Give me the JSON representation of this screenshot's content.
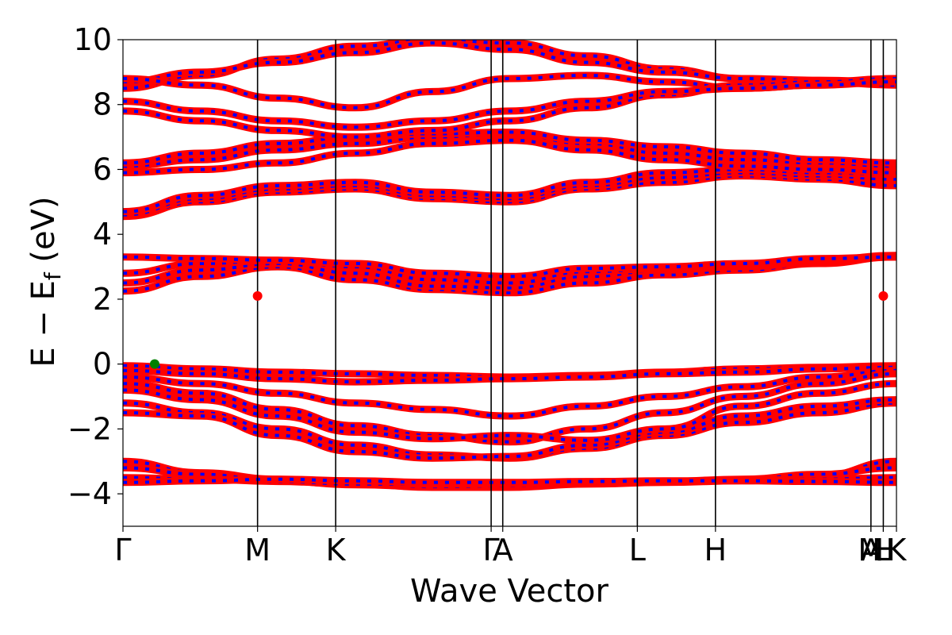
{
  "chart_data": {
    "type": "line",
    "title": "",
    "xlabel": "Wave Vector",
    "ylabel": "E − E",
    "ylabel_sub": "f",
    "ylabel_unit": " (eV)",
    "ylim": [
      -5,
      10
    ],
    "yticks": [
      -4,
      -2,
      0,
      2,
      4,
      6,
      8,
      10
    ],
    "ytick_labels": [
      "−4",
      "−2",
      "0",
      "2",
      "4",
      "6",
      "8",
      "10"
    ],
    "kpath": [
      {
        "label": "Γ",
        "x": 0.0
      },
      {
        "label": "M",
        "x": 0.174
      },
      {
        "label": "K",
        "x": 0.275
      },
      {
        "label": "Γ",
        "x": 0.476
      },
      {
        "label": "A",
        "x": 0.491
      },
      {
        "label": "L",
        "x": 0.665
      },
      {
        "label": "H",
        "x": 0.766
      },
      {
        "label": "A",
        "x": 0.967
      },
      {
        "label": "L",
        "x": 0.983
      },
      {
        "label": "M",
        "x": 0.967
      },
      {
        "label": "H",
        "x": 0.983
      },
      {
        "label": "K",
        "x": 1.0
      }
    ],
    "vlines": [
      0.174,
      0.275,
      0.476,
      0.491,
      0.665,
      0.766,
      0.967,
      0.983
    ],
    "grid": false,
    "legend": "none",
    "band_colors": [
      "#ff0000",
      "#0000ff"
    ],
    "vbm": {
      "x": 0.041,
      "y": 0.0,
      "color": "#008000"
    },
    "cbm": [
      {
        "x": 0.174,
        "y": 2.1,
        "color": "#ff0000"
      },
      {
        "x": 0.983,
        "y": 2.1,
        "color": "#ff0000"
      }
    ],
    "band_groups": [
      {
        "name": "valence-deep",
        "bands": [
          [
            -3.0,
            -3.35,
            -3.55,
            -3.7,
            -3.8,
            -3.8,
            -3.7,
            -3.65,
            -3.6,
            -3.45,
            -3.0
          ],
          [
            -3.2,
            -3.4,
            -3.6,
            -3.72,
            -3.78,
            -3.75,
            -3.68,
            -3.62,
            -3.55,
            -3.4,
            -3.2
          ],
          [
            -3.5,
            -3.55,
            -3.62,
            -3.7,
            -3.7,
            -3.68,
            -3.65,
            -3.62,
            -3.58,
            -3.55,
            -3.5
          ],
          [
            -3.65,
            -3.6,
            -3.55,
            -3.6,
            -3.65,
            -3.65,
            -3.62,
            -3.6,
            -3.6,
            -3.62,
            -3.65
          ]
        ]
      },
      {
        "name": "valence-upper",
        "bands": [
          [
            -0.05,
            -0.15,
            -0.25,
            -0.3,
            -0.35,
            -0.4,
            -0.35,
            -0.25,
            -0.15,
            -0.1,
            -0.05
          ],
          [
            -0.2,
            -0.3,
            -0.45,
            -0.55,
            -0.5,
            -0.45,
            -0.4,
            -0.3,
            -0.25,
            -0.15,
            -0.1
          ],
          [
            -0.4,
            -0.6,
            -0.9,
            -1.2,
            -1.4,
            -1.6,
            -1.3,
            -1.0,
            -0.7,
            -0.4,
            -0.2
          ],
          [
            -0.6,
            -0.9,
            -1.4,
            -1.9,
            -2.2,
            -2.4,
            -2.0,
            -1.5,
            -1.0,
            -0.6,
            -0.3
          ],
          [
            -1.2,
            -1.5,
            -2.0,
            -2.5,
            -2.8,
            -2.9,
            -2.6,
            -2.2,
            -1.8,
            -1.5,
            -1.2
          ],
          [
            -1.5,
            -1.6,
            -2.2,
            -2.7,
            -2.9,
            -2.85,
            -2.5,
            -2.1,
            -1.6,
            -1.3,
            -1.1
          ],
          [
            -0.8,
            -1.1,
            -1.6,
            -2.1,
            -2.3,
            -2.2,
            -2.35,
            -2.0,
            -1.3,
            -0.9,
            -0.6
          ]
        ]
      },
      {
        "name": "conduction-low",
        "bands": [
          [
            2.25,
            2.7,
            3.0,
            2.6,
            2.3,
            2.2,
            2.5,
            2.75,
            2.9,
            3.1,
            3.3
          ],
          [
            2.5,
            2.9,
            3.1,
            2.8,
            2.4,
            2.35,
            2.7,
            2.9,
            3.0,
            3.15,
            3.3
          ],
          [
            2.8,
            3.1,
            3.2,
            3.0,
            2.6,
            2.5,
            2.85,
            2.95,
            3.05,
            3.2,
            3.35
          ],
          [
            3.3,
            3.25,
            3.2,
            3.1,
            2.8,
            2.7,
            2.95,
            3.0,
            3.1,
            3.25,
            3.3
          ]
        ]
      },
      {
        "name": "conduction-mid",
        "bands": [
          [
            4.55,
            5.0,
            5.3,
            5.4,
            5.1,
            5.0,
            5.4,
            5.6,
            5.8,
            5.7,
            5.5
          ],
          [
            4.6,
            5.1,
            5.4,
            5.5,
            5.2,
            5.1,
            5.5,
            5.75,
            5.9,
            5.8,
            5.7
          ],
          [
            4.7,
            5.2,
            5.5,
            5.6,
            5.3,
            5.2,
            5.6,
            5.9,
            6.0,
            5.9,
            5.85
          ],
          [
            6.1,
            6.3,
            6.6,
            6.8,
            7.0,
            7.1,
            6.8,
            6.5,
            6.3,
            6.2,
            6.1
          ],
          [
            6.2,
            6.5,
            6.8,
            7.0,
            7.1,
            7.15,
            6.9,
            6.7,
            6.5,
            6.3,
            6.2
          ],
          [
            5.9,
            6.0,
            6.2,
            6.5,
            6.8,
            6.9,
            6.6,
            6.3,
            6.1,
            6.0,
            5.9
          ]
        ]
      },
      {
        "name": "conduction-high",
        "bands": [
          [
            8.5,
            8.9,
            9.4,
            9.8,
            10.0,
            9.9,
            9.5,
            9.1,
            8.8,
            8.7,
            8.6
          ],
          [
            8.7,
            9.0,
            9.3,
            9.6,
            9.9,
            9.7,
            9.3,
            9.0,
            8.8,
            8.75,
            8.7
          ],
          [
            8.8,
            8.6,
            8.2,
            7.9,
            8.4,
            8.8,
            8.9,
            8.7,
            8.5,
            8.6,
            8.8
          ],
          [
            7.8,
            7.5,
            7.2,
            7.0,
            7.2,
            7.5,
            7.9,
            8.3,
            8.6,
            8.7,
            8.8
          ],
          [
            8.1,
            7.8,
            7.5,
            7.3,
            7.5,
            7.8,
            8.1,
            8.4,
            8.5,
            8.6,
            8.7
          ]
        ]
      }
    ]
  }
}
